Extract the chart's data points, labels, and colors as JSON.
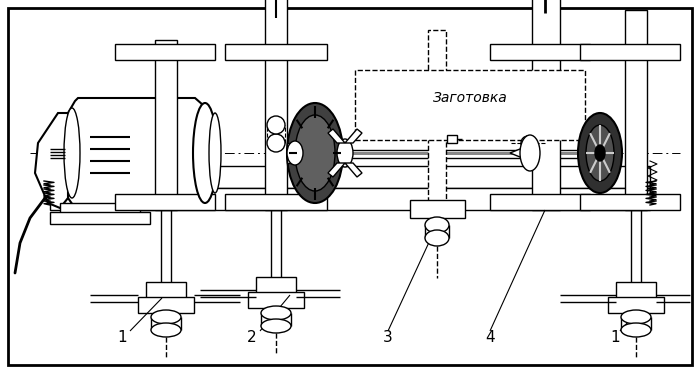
{
  "bg_color": "#ffffff",
  "line_color": "#000000",
  "fig_width": 7.0,
  "fig_height": 3.73,
  "dpi": 100,
  "zagotovka": "Заготовка"
}
